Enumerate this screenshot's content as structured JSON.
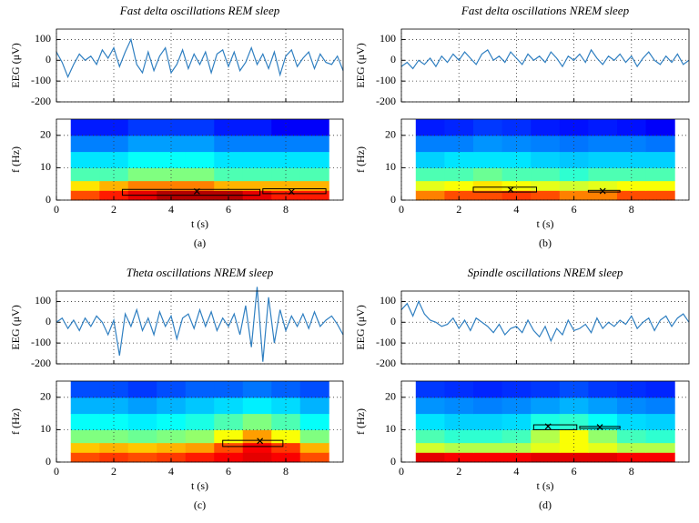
{
  "chart_data": [
    {
      "type": "line",
      "title": "Fast delta oscillations REM sleep",
      "ylabel": "EEG (μV)",
      "color": "#2f7fc1",
      "x": [
        0,
        0.2,
        0.4,
        0.6,
        0.8,
        1,
        1.2,
        1.4,
        1.6,
        1.8,
        2,
        2.2,
        2.4,
        2.6,
        2.8,
        3,
        3.2,
        3.4,
        3.6,
        3.8,
        4,
        4.2,
        4.4,
        4.6,
        4.8,
        5,
        5.2,
        5.4,
        5.6,
        5.8,
        6,
        6.2,
        6.4,
        6.6,
        6.8,
        7,
        7.2,
        7.4,
        7.6,
        7.8,
        8,
        8.2,
        8.4,
        8.6,
        8.8,
        9,
        9.2,
        9.4,
        9.6,
        9.8,
        10
      ],
      "values": [
        40,
        -10,
        -80,
        -20,
        30,
        0,
        20,
        -20,
        50,
        10,
        60,
        -30,
        40,
        100,
        -20,
        -60,
        40,
        -50,
        20,
        60,
        -60,
        -20,
        50,
        -40,
        30,
        -20,
        40,
        -60,
        30,
        50,
        -30,
        40,
        -50,
        -10,
        60,
        -20,
        30,
        -40,
        40,
        -70,
        20,
        50,
        -30,
        10,
        40,
        -40,
        30,
        -10,
        -20,
        20,
        -50
      ],
      "xlim": [
        0,
        10
      ],
      "ylim": [
        -200,
        150
      ],
      "xticks": [
        0,
        2,
        4,
        6,
        8
      ],
      "yticks": [
        100,
        0,
        -100,
        -200
      ],
      "grid": true,
      "show_xtick_labels": false
    },
    {
      "type": "heatmap",
      "xlabel": "t (s)",
      "ylabel": "f (Hz)",
      "caption": "(a)",
      "x_bins": [
        0.5,
        1.5,
        2.5,
        3.5,
        4.5,
        5.5,
        6.5,
        7.5,
        8.5,
        9.5
      ],
      "y_bins": [
        0,
        3,
        6,
        10,
        15,
        20,
        25
      ],
      "values": [
        [
          0.8,
          0.85,
          0.9,
          0.95,
          0.95,
          0.95,
          0.9,
          0.85,
          0.85
        ],
        [
          0.65,
          0.7,
          0.75,
          0.75,
          0.75,
          0.7,
          0.7,
          0.7,
          0.7
        ],
        [
          0.45,
          0.45,
          0.5,
          0.5,
          0.5,
          0.45,
          0.45,
          0.45,
          0.45
        ],
        [
          0.35,
          0.35,
          0.38,
          0.38,
          0.38,
          0.35,
          0.35,
          0.35,
          0.35
        ],
        [
          0.25,
          0.25,
          0.28,
          0.28,
          0.28,
          0.25,
          0.25,
          0.25,
          0.25
        ],
        [
          0.15,
          0.15,
          0.18,
          0.18,
          0.18,
          0.15,
          0.15,
          0.12,
          0.12
        ]
      ],
      "boxes": [
        {
          "x0": 2.3,
          "x1": 7.1,
          "f0": 1.5,
          "f1": 3.3,
          "xm": 4.9,
          "fm": 2.7
        },
        {
          "x0": 7.2,
          "x1": 9.4,
          "f0": 2,
          "f1": 3.5,
          "xm": 8.2,
          "fm": 2.6
        }
      ],
      "xlim": [
        0,
        10
      ],
      "ylim": [
        0,
        25
      ],
      "xticks": [
        0,
        2,
        4,
        6,
        8
      ],
      "yticks": [
        0,
        10,
        20
      ],
      "grid": true
    },
    {
      "type": "line",
      "title": "Fast delta oscillations NREM sleep",
      "ylabel": "EEG (μV)",
      "color": "#2f7fc1",
      "x": [
        0,
        0.2,
        0.4,
        0.6,
        0.8,
        1,
        1.2,
        1.4,
        1.6,
        1.8,
        2,
        2.2,
        2.4,
        2.6,
        2.8,
        3,
        3.2,
        3.4,
        3.6,
        3.8,
        4,
        4.2,
        4.4,
        4.6,
        4.8,
        5,
        5.2,
        5.4,
        5.6,
        5.8,
        6,
        6.2,
        6.4,
        6.6,
        6.8,
        7,
        7.2,
        7.4,
        7.6,
        7.8,
        8,
        8.2,
        8.4,
        8.6,
        8.8,
        9,
        9.2,
        9.4,
        9.6,
        9.8,
        10
      ],
      "values": [
        -30,
        -10,
        -40,
        0,
        -20,
        10,
        -30,
        20,
        -10,
        30,
        0,
        40,
        10,
        -20,
        30,
        50,
        0,
        20,
        -10,
        40,
        10,
        -20,
        30,
        0,
        20,
        -10,
        40,
        10,
        -30,
        20,
        0,
        30,
        -10,
        50,
        10,
        -20,
        20,
        0,
        30,
        -10,
        20,
        -30,
        10,
        40,
        0,
        -20,
        20,
        -10,
        30,
        -20,
        0
      ],
      "xlim": [
        0,
        10
      ],
      "ylim": [
        -200,
        150
      ],
      "xticks": [
        0,
        2,
        4,
        6,
        8
      ],
      "yticks": [
        100,
        0,
        -100,
        -200
      ],
      "grid": true,
      "show_xtick_labels": false
    },
    {
      "type": "heatmap",
      "xlabel": "t (s)",
      "ylabel": "f (Hz)",
      "caption": "(b)",
      "x_bins": [
        0.5,
        1.5,
        2.5,
        3.5,
        4.5,
        5.5,
        6.5,
        7.5,
        8.5,
        9.5
      ],
      "y_bins": [
        0,
        3,
        6,
        10,
        15,
        20,
        25
      ],
      "values": [
        [
          0.75,
          0.8,
          0.8,
          0.82,
          0.8,
          0.75,
          0.75,
          0.8,
          0.8
        ],
        [
          0.6,
          0.62,
          0.65,
          0.62,
          0.6,
          0.58,
          0.6,
          0.62,
          0.62
        ],
        [
          0.45,
          0.45,
          0.48,
          0.45,
          0.45,
          0.42,
          0.45,
          0.45,
          0.45
        ],
        [
          0.33,
          0.35,
          0.35,
          0.35,
          0.33,
          0.32,
          0.33,
          0.33,
          0.33
        ],
        [
          0.25,
          0.25,
          0.27,
          0.26,
          0.25,
          0.24,
          0.25,
          0.25,
          0.24
        ],
        [
          0.15,
          0.16,
          0.18,
          0.17,
          0.15,
          0.14,
          0.15,
          0.14,
          0.12
        ]
      ],
      "boxes": [
        {
          "x0": 2.5,
          "x1": 4.7,
          "f0": 2.5,
          "f1": 4,
          "xm": 3.8,
          "fm": 3.2
        },
        {
          "x0": 6.5,
          "x1": 7.6,
          "f0": 2.5,
          "f1": 3,
          "xm": 7,
          "fm": 2.8
        }
      ],
      "xlim": [
        0,
        10
      ],
      "ylim": [
        0,
        25
      ],
      "xticks": [
        0,
        2,
        4,
        6,
        8
      ],
      "yticks": [
        0,
        10,
        20
      ],
      "grid": true
    },
    {
      "type": "line",
      "title": "Theta oscillations NREM sleep",
      "ylabel": "EEG (μV)",
      "color": "#2f7fc1",
      "x": [
        0,
        0.2,
        0.4,
        0.6,
        0.8,
        1,
        1.2,
        1.4,
        1.6,
        1.8,
        2,
        2.2,
        2.4,
        2.6,
        2.8,
        3,
        3.2,
        3.4,
        3.6,
        3.8,
        4,
        4.2,
        4.4,
        4.6,
        4.8,
        5,
        5.2,
        5.4,
        5.6,
        5.8,
        6,
        6.2,
        6.4,
        6.6,
        6.8,
        7,
        7.2,
        7.4,
        7.6,
        7.8,
        8,
        8.2,
        8.4,
        8.6,
        8.8,
        9,
        9.2,
        9.4,
        9.6,
        9.8,
        10
      ],
      "values": [
        0,
        20,
        -30,
        10,
        -40,
        20,
        -20,
        30,
        0,
        -60,
        10,
        -160,
        40,
        -20,
        60,
        -40,
        20,
        -60,
        50,
        -20,
        30,
        -80,
        20,
        40,
        -30,
        60,
        -20,
        50,
        -40,
        20,
        -20,
        40,
        -60,
        80,
        -120,
        170,
        -190,
        120,
        -100,
        60,
        -40,
        30,
        -20,
        40,
        -30,
        50,
        -20,
        10,
        30,
        -10,
        -60
      ],
      "xlim": [
        0,
        10
      ],
      "ylim": [
        -200,
        150
      ],
      "xticks": [
        0,
        2,
        4,
        6,
        8
      ],
      "yticks": [
        100,
        0,
        -100,
        -200
      ],
      "grid": true,
      "show_xtick_labels": false
    },
    {
      "type": "heatmap",
      "xlabel": "t (s)",
      "ylabel": "f (Hz)",
      "caption": "(c)",
      "x_bins": [
        0.5,
        1.5,
        2.5,
        3.5,
        4.5,
        5.5,
        6.5,
        7.5,
        8.5,
        9.5
      ],
      "y_bins": [
        0,
        3,
        6,
        10,
        15,
        20,
        25
      ],
      "values": [
        [
          0.8,
          0.82,
          0.8,
          0.82,
          0.85,
          0.88,
          0.9,
          0.88,
          0.8
        ],
        [
          0.68,
          0.7,
          0.68,
          0.7,
          0.72,
          0.8,
          0.88,
          0.82,
          0.7
        ],
        [
          0.5,
          0.5,
          0.48,
          0.5,
          0.52,
          0.62,
          0.72,
          0.62,
          0.5
        ],
        [
          0.38,
          0.38,
          0.36,
          0.38,
          0.4,
          0.45,
          0.5,
          0.45,
          0.38
        ],
        [
          0.3,
          0.3,
          0.28,
          0.3,
          0.32,
          0.34,
          0.36,
          0.34,
          0.3
        ],
        [
          0.2,
          0.2,
          0.18,
          0.2,
          0.22,
          0.22,
          0.24,
          0.22,
          0.2
        ]
      ],
      "boxes": [
        {
          "x0": 5.8,
          "x1": 7.9,
          "f0": 4.8,
          "f1": 6.7,
          "xm": 7.1,
          "fm": 6.5
        }
      ],
      "xlim": [
        0,
        10
      ],
      "ylim": [
        0,
        25
      ],
      "xticks": [
        0,
        2,
        4,
        6,
        8
      ],
      "yticks": [
        0,
        10,
        20
      ],
      "grid": true
    },
    {
      "type": "line",
      "title": "Spindle oscillations NREM sleep",
      "ylabel": "EEG (μV)",
      "color": "#2f7fc1",
      "x": [
        0,
        0.2,
        0.4,
        0.6,
        0.8,
        1,
        1.2,
        1.4,
        1.6,
        1.8,
        2,
        2.2,
        2.4,
        2.6,
        2.8,
        3,
        3.2,
        3.4,
        3.6,
        3.8,
        4,
        4.2,
        4.4,
        4.6,
        4.8,
        5,
        5.2,
        5.4,
        5.6,
        5.8,
        6,
        6.2,
        6.4,
        6.6,
        6.8,
        7,
        7.2,
        7.4,
        7.6,
        7.8,
        8,
        8.2,
        8.4,
        8.6,
        8.8,
        9,
        9.2,
        9.4,
        9.6,
        9.8,
        10
      ],
      "values": [
        60,
        90,
        30,
        100,
        40,
        10,
        0,
        -20,
        -10,
        20,
        -30,
        10,
        -40,
        20,
        0,
        -20,
        -50,
        -10,
        -60,
        -30,
        -20,
        -50,
        10,
        -40,
        -70,
        -20,
        -90,
        -30,
        -60,
        10,
        -40,
        -30,
        -10,
        -50,
        20,
        -30,
        0,
        -20,
        10,
        -10,
        30,
        -30,
        0,
        20,
        -40,
        10,
        30,
        -20,
        20,
        40,
        0
      ],
      "xlim": [
        0,
        10
      ],
      "ylim": [
        -200,
        150
      ],
      "xticks": [
        0,
        2,
        4,
        6,
        8
      ],
      "yticks": [
        100,
        0,
        -100,
        -200
      ],
      "grid": true,
      "show_xtick_labels": false
    },
    {
      "type": "heatmap",
      "xlabel": "t (s)",
      "ylabel": "f (Hz)",
      "caption": "(d)",
      "x_bins": [
        0.5,
        1.5,
        2.5,
        3.5,
        4.5,
        5.5,
        6.5,
        7.5,
        8.5,
        9.5
      ],
      "y_bins": [
        0,
        3,
        6,
        10,
        15,
        20,
        25
      ],
      "values": [
        [
          0.9,
          0.88,
          0.88,
          0.88,
          0.9,
          0.9,
          0.9,
          0.88,
          0.88
        ],
        [
          0.58,
          0.55,
          0.55,
          0.55,
          0.6,
          0.62,
          0.6,
          0.55,
          0.55
        ],
        [
          0.45,
          0.42,
          0.42,
          0.44,
          0.55,
          0.62,
          0.52,
          0.44,
          0.42
        ],
        [
          0.35,
          0.33,
          0.33,
          0.34,
          0.4,
          0.42,
          0.38,
          0.34,
          0.33
        ],
        [
          0.27,
          0.26,
          0.25,
          0.26,
          0.28,
          0.3,
          0.28,
          0.26,
          0.25
        ],
        [
          0.18,
          0.17,
          0.16,
          0.17,
          0.18,
          0.2,
          0.18,
          0.17,
          0.16
        ]
      ],
      "boxes": [
        {
          "x0": 4.6,
          "x1": 6.1,
          "f0": 10,
          "f1": 11.5,
          "xm": 5.1,
          "fm": 11
        },
        {
          "x0": 6.2,
          "x1": 7.6,
          "f0": 10.4,
          "f1": 11,
          "xm": 6.9,
          "fm": 10.8
        }
      ],
      "xlim": [
        0,
        10
      ],
      "ylim": [
        0,
        25
      ],
      "xticks": [
        0,
        2,
        4,
        6,
        8
      ],
      "yticks": [
        0,
        10,
        20
      ],
      "grid": true
    }
  ]
}
